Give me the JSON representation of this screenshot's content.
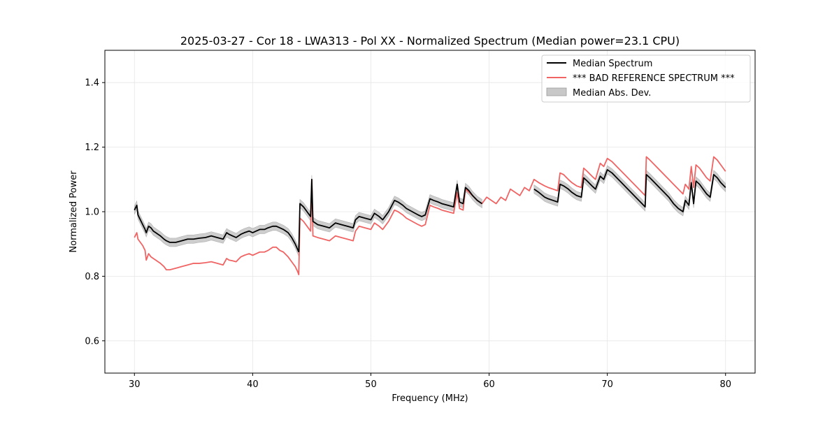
{
  "chart_data": {
    "type": "line",
    "title": "2025-03-27 - Cor 18 - LWA313 - Pol XX - Normalized Spectrum (Median power=23.1 CPU)",
    "xlabel": "Frequency (MHz)",
    "ylabel": "Normalized Power",
    "xlim": [
      27.5,
      82.5
    ],
    "ylim": [
      0.5,
      1.5
    ],
    "xticks": [
      30,
      40,
      50,
      60,
      70,
      80
    ],
    "yticks": [
      0.6,
      0.8,
      1.0,
      1.2,
      1.4
    ],
    "xtick_labels": [
      "30",
      "40",
      "50",
      "60",
      "70",
      "80"
    ],
    "ytick_labels": [
      "0.6",
      "0.8",
      "1.0",
      "1.2",
      "1.4"
    ],
    "grid": true,
    "legend_position": "top-right",
    "colors": {
      "median": "#000000",
      "reference": "#f06464",
      "mad": "#c8c8c8"
    },
    "legend": [
      {
        "label": "Median Spectrum",
        "kind": "line",
        "color": "#000000"
      },
      {
        "label": "*** BAD REFERENCE SPECTRUM ***",
        "kind": "line",
        "color": "#f06464"
      },
      {
        "label": "Median Abs. Dev.",
        "kind": "patch",
        "color": "#c8c8c8"
      }
    ],
    "series": [
      {
        "name": "Median Spectrum",
        "segments": [
          {
            "x": [
              30.0,
              30.2,
              30.3,
              30.5,
              30.7,
              30.9,
              31.0,
              31.2,
              31.4,
              31.6,
              31.8,
              32.0,
              32.2,
              32.5,
              32.7,
              33.0,
              33.5,
              34.0,
              34.5,
              35.0,
              35.5,
              36.0,
              36.5,
              37.0,
              37.5,
              37.8,
              38.0,
              38.3,
              38.6,
              39.0,
              39.3,
              39.7,
              40.0,
              40.3,
              40.6,
              41.0,
              41.3,
              41.7,
              42.0,
              42.3,
              42.6,
              43.0,
              43.3,
              43.6,
              43.9
            ],
            "y": [
              1.005,
              1.02,
              0.99,
              0.975,
              0.96,
              0.945,
              0.935,
              0.955,
              0.95,
              0.94,
              0.935,
              0.93,
              0.925,
              0.915,
              0.91,
              0.905,
              0.905,
              0.91,
              0.915,
              0.915,
              0.918,
              0.92,
              0.925,
              0.92,
              0.915,
              0.935,
              0.93,
              0.925,
              0.92,
              0.93,
              0.935,
              0.94,
              0.935,
              0.94,
              0.945,
              0.945,
              0.95,
              0.955,
              0.955,
              0.95,
              0.945,
              0.935,
              0.92,
              0.9,
              0.875
            ]
          },
          {
            "x": [
              43.9,
              44.0,
              44.3,
              44.6,
              44.9,
              45.0,
              45.1,
              45.5,
              46.0,
              46.5,
              47.0,
              47.5,
              48.0,
              48.5,
              48.7,
              49.0,
              49.5,
              50.0,
              50.3,
              50.7,
              51.0,
              51.5,
              52.0,
              52.3,
              52.7,
              53.0,
              53.5,
              54.0,
              54.3,
              54.6,
              55.0,
              55.3,
              55.7,
              56.0,
              56.5,
              57.0,
              57.3,
              57.5,
              57.8,
              58.0,
              58.3,
              58.6,
              59.0,
              59.4
            ],
            "y": [
              0.875,
              1.025,
              1.015,
              1.0,
              0.985,
              1.1,
              0.97,
              0.96,
              0.955,
              0.95,
              0.965,
              0.96,
              0.955,
              0.95,
              0.975,
              0.985,
              0.98,
              0.975,
              0.995,
              0.985,
              0.975,
              1.0,
              1.035,
              1.03,
              1.02,
              1.01,
              1.0,
              0.99,
              0.985,
              0.99,
              1.04,
              1.035,
              1.03,
              1.025,
              1.02,
              1.015,
              1.085,
              1.03,
              1.025,
              1.075,
              1.065,
              1.05,
              1.035,
              1.025
            ]
          },
          {
            "x": [
              63.8,
              64.2,
              64.7,
              65.0,
              65.4,
              65.8,
              66.0,
              66.3,
              66.7,
              67.0,
              67.4,
              67.8,
              68.0,
              68.3,
              68.7,
              69.0,
              69.4,
              69.7,
              70.0,
              70.4,
              70.8,
              71.2,
              71.6,
              72.0,
              72.4,
              72.8,
              73.2,
              73.3,
              73.6,
              74.0,
              74.4,
              74.8,
              75.2,
              75.6,
              76.0,
              76.4,
              76.6,
              76.9,
              77.1,
              77.3,
              77.5,
              77.8,
              78.1,
              78.4,
              78.7,
              79.0,
              79.3,
              79.6,
              80.0
            ],
            "y": [
              1.07,
              1.06,
              1.045,
              1.04,
              1.035,
              1.03,
              1.085,
              1.08,
              1.07,
              1.06,
              1.05,
              1.045,
              1.105,
              1.095,
              1.08,
              1.07,
              1.11,
              1.1,
              1.13,
              1.12,
              1.105,
              1.09,
              1.075,
              1.06,
              1.045,
              1.03,
              1.015,
              1.115,
              1.105,
              1.09,
              1.075,
              1.06,
              1.045,
              1.025,
              1.01,
              1.0,
              1.035,
              1.02,
              1.09,
              1.025,
              1.095,
              1.085,
              1.07,
              1.055,
              1.045,
              1.115,
              1.105,
              1.09,
              1.075
            ]
          }
        ]
      },
      {
        "name": "*** BAD REFERENCE SPECTRUM ***",
        "segments": [
          {
            "x": [
              30.0,
              30.2,
              30.3,
              30.5,
              30.7,
              30.9,
              31.0,
              31.2,
              31.4,
              31.6,
              31.8,
              32.0,
              32.2,
              32.5,
              32.7,
              33.0,
              33.5,
              34.0,
              34.5,
              35.0,
              35.5,
              36.0,
              36.5,
              37.0,
              37.5,
              37.8,
              38.0,
              38.3,
              38.6,
              39.0,
              39.3,
              39.7,
              40.0,
              40.3,
              40.6,
              41.0,
              41.3,
              41.7,
              42.0,
              42.3,
              42.6,
              43.0,
              43.3,
              43.6,
              43.8,
              43.9,
              44.0,
              44.3,
              44.6,
              44.9,
              45.0,
              45.1,
              45.5,
              46.0,
              46.5,
              47.0,
              47.5,
              48.0,
              48.5,
              48.7,
              49.0,
              49.5,
              50.0,
              50.3,
              50.7,
              51.0,
              51.5,
              52.0,
              52.3,
              52.7,
              53.0,
              53.5,
              54.0,
              54.3,
              54.6,
              55.0,
              55.3,
              55.7,
              56.0,
              56.5,
              57.0,
              57.3,
              57.5,
              57.8,
              58.0,
              58.3,
              58.6,
              59.0,
              59.4,
              59.8,
              60.2,
              60.6,
              61.0,
              61.4,
              61.8,
              62.2,
              62.6,
              63.0,
              63.4,
              63.8,
              64.2,
              64.7,
              65.0,
              65.4,
              65.8,
              66.0,
              66.3,
              66.7,
              67.0,
              67.4,
              67.8,
              68.0,
              68.3,
              68.7,
              69.0,
              69.4,
              69.7,
              70.0,
              70.4,
              70.8,
              71.2,
              71.6,
              72.0,
              72.4,
              72.8,
              73.2,
              73.3,
              73.6,
              74.0,
              74.4,
              74.8,
              75.2,
              75.6,
              76.0,
              76.4,
              76.6,
              76.9,
              77.1,
              77.3,
              77.5,
              77.8,
              78.1,
              78.4,
              78.7,
              79.0,
              79.3,
              79.6,
              80.0
            ],
            "y": [
              0.92,
              0.935,
              0.915,
              0.905,
              0.895,
              0.88,
              0.85,
              0.87,
              0.86,
              0.855,
              0.85,
              0.845,
              0.84,
              0.83,
              0.82,
              0.82,
              0.825,
              0.83,
              0.835,
              0.84,
              0.84,
              0.842,
              0.845,
              0.84,
              0.835,
              0.855,
              0.85,
              0.848,
              0.845,
              0.86,
              0.865,
              0.87,
              0.865,
              0.87,
              0.875,
              0.875,
              0.88,
              0.89,
              0.89,
              0.88,
              0.875,
              0.86,
              0.845,
              0.83,
              0.815,
              0.805,
              0.98,
              0.97,
              0.955,
              0.94,
              1.1,
              0.925,
              0.92,
              0.915,
              0.91,
              0.925,
              0.92,
              0.915,
              0.91,
              0.94,
              0.955,
              0.95,
              0.945,
              0.965,
              0.955,
              0.945,
              0.97,
              1.005,
              1.0,
              0.99,
              0.98,
              0.97,
              0.96,
              0.955,
              0.96,
              1.02,
              1.015,
              1.01,
              1.005,
              1.0,
              0.995,
              1.06,
              1.01,
              1.005,
              1.07,
              1.06,
              1.05,
              1.035,
              1.025,
              1.045,
              1.035,
              1.025,
              1.045,
              1.035,
              1.07,
              1.06,
              1.05,
              1.075,
              1.065,
              1.1,
              1.09,
              1.08,
              1.075,
              1.07,
              1.065,
              1.12,
              1.115,
              1.1,
              1.09,
              1.08,
              1.075,
              1.135,
              1.125,
              1.11,
              1.1,
              1.15,
              1.14,
              1.165,
              1.155,
              1.14,
              1.125,
              1.11,
              1.095,
              1.08,
              1.065,
              1.05,
              1.17,
              1.16,
              1.145,
              1.13,
              1.115,
              1.1,
              1.085,
              1.07,
              1.055,
              1.085,
              1.07,
              1.14,
              1.075,
              1.145,
              1.135,
              1.12,
              1.105,
              1.095,
              1.17,
              1.16,
              1.145,
              1.125
            ]
          }
        ]
      }
    ],
    "mad_band": {
      "name": "Median Abs. Dev.",
      "half_width": 0.013
    }
  }
}
